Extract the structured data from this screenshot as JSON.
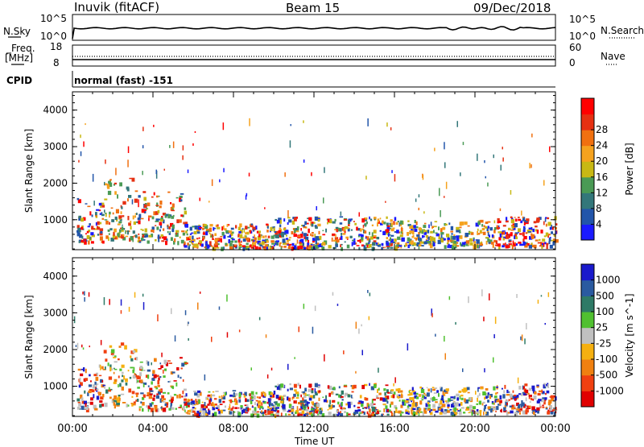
{
  "header": {
    "station": "Inuvik (fitACF)",
    "beam": "Beam 15",
    "date": "09/Dec/2018"
  },
  "top_panels": {
    "nsky_label": "N.Sky",
    "nsky_ticks": [
      "10^5",
      "10^0"
    ],
    "nsearch_label": "N.Search",
    "nsearch_ticks": [
      "10^5",
      "10^0"
    ],
    "freq_label": "Freq.",
    "freq_unit": "[MHz]",
    "freq_ticks": [
      "18",
      "8"
    ],
    "nave_label": "Nave",
    "nave_ticks": [
      "60",
      "0"
    ],
    "cpid_label": "CPID",
    "cpid_value": "normal (fast) -151"
  },
  "x_axis": {
    "ticks": [
      "00:00",
      "04:00",
      "08:00",
      "12:00",
      "16:00",
      "20:00",
      "00:00"
    ],
    "label": "Time UT"
  },
  "chart_data": [
    {
      "type": "heatmap",
      "name": "Power",
      "ylabel": "Slant Range [km]",
      "yticks": [
        "1000",
        "2000",
        "3000",
        "4000"
      ],
      "ylim": [
        180,
        4500
      ],
      "xlim_hours": [
        0,
        24
      ],
      "colorbar": {
        "label": "Power [dB]",
        "ticks": [
          "4",
          "8",
          "12",
          "16",
          "20",
          "24",
          "28"
        ],
        "colors": [
          "#1a1aff",
          "#2255aa",
          "#33777a",
          "#4a9a55",
          "#c8b814",
          "#f5a21e",
          "#f07010",
          "#e63012",
          "#ff0000"
        ]
      }
    },
    {
      "type": "heatmap",
      "name": "Velocity",
      "ylabel": "Slant Range [km]",
      "yticks": [
        "1000",
        "2000",
        "3000",
        "4000"
      ],
      "ylim": [
        180,
        4500
      ],
      "xlim_hours": [
        0,
        24
      ],
      "colorbar": {
        "label": "Velocity [m s^-1]",
        "ticks": [
          "1000",
          "500",
          "100",
          "25",
          "-25",
          "-100",
          "-500",
          "-1000"
        ],
        "colors": [
          "#1a1acc",
          "#2a5aa0",
          "#2e7a66",
          "#50c030",
          "#c0c0c0",
          "#f5b010",
          "#f08010",
          "#f04010",
          "#e00000"
        ]
      }
    }
  ]
}
